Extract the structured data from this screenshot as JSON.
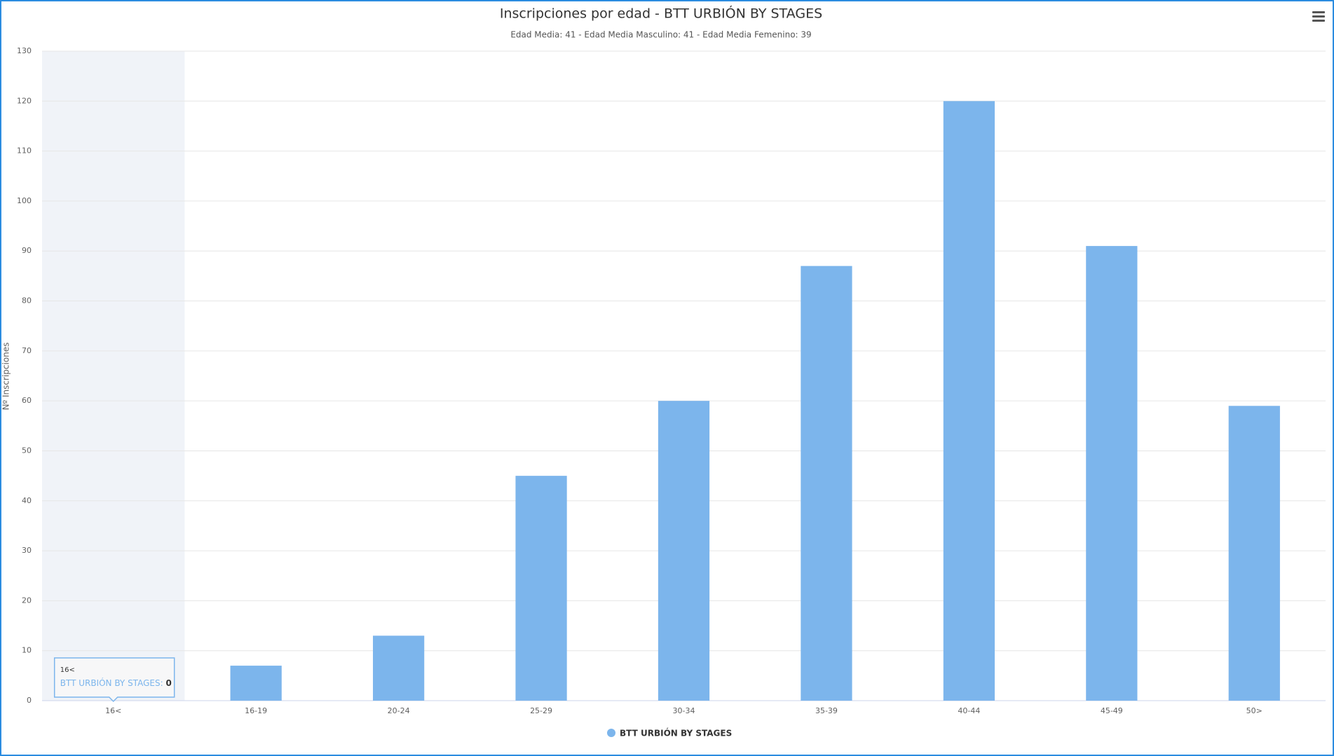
{
  "chart_data": {
    "type": "bar",
    "title": "Inscripciones por edad - BTT URBIÓN BY STAGES",
    "subtitle": "Edad Media: 41 - Edad Media Masculino: 41 - Edad Media Femenino: 39",
    "y_label": "Nº Inscripciones",
    "categories": [
      "16<",
      "16-19",
      "20-24",
      "25-29",
      "30-34",
      "35-39",
      "40-44",
      "45-49",
      "50>"
    ],
    "series": [
      {
        "name": "BTT URBIÓN BY STAGES",
        "color": "#7cb5ec",
        "values": [
          0,
          7,
          13,
          45,
          60,
          87,
          120,
          91,
          59
        ]
      }
    ],
    "ylim": [
      0,
      130
    ],
    "yticks": [
      0,
      10,
      20,
      30,
      40,
      50,
      60,
      70,
      80,
      90,
      100,
      110,
      120,
      130
    ],
    "grid": true,
    "legend": "bottom",
    "highlighted_category": 0
  }
}
